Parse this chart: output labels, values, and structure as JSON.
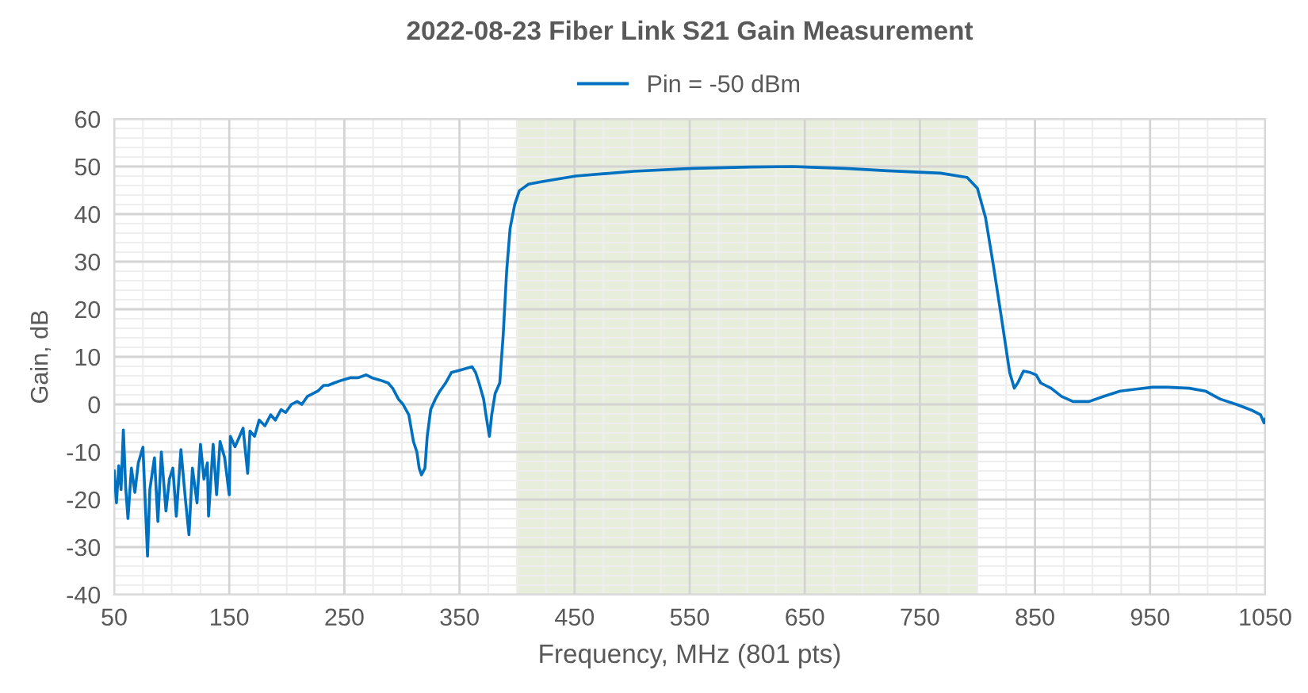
{
  "chart_data": {
    "type": "line",
    "title": "2022-08-23 Fiber Link S21 Gain Measurement",
    "xlabel": "Frequency, MHz (801 pts)",
    "ylabel": "Gain, dB",
    "xlim": [
      50,
      1050
    ],
    "xticks": [
      50,
      150,
      250,
      350,
      450,
      550,
      650,
      750,
      850,
      950,
      1050
    ],
    "ylim": [
      -40,
      60
    ],
    "yticks": [
      -40,
      -30,
      -20,
      -10,
      0,
      10,
      20,
      30,
      40,
      50,
      60
    ],
    "grid": true,
    "legend": "top",
    "bands": [
      {
        "axis": "x",
        "from": 400,
        "to": 800,
        "color": "#e3ebd6"
      }
    ],
    "series": [
      {
        "name": "Pin = -50 dBm",
        "color": "#0070c0",
        "x": [
          50,
          52,
          54,
          56,
          58,
          60,
          62,
          65,
          68,
          71,
          75,
          79,
          81,
          85,
          88,
          91,
          95,
          98,
          101,
          104,
          108,
          112,
          115,
          118,
          122,
          125,
          128,
          131,
          132,
          136,
          139,
          142,
          146,
          150,
          151,
          155,
          159,
          162,
          166,
          168,
          172,
          176,
          181,
          186,
          190,
          195,
          199,
          204,
          209,
          213,
          218,
          223,
          227,
          232,
          236,
          241,
          248,
          255,
          262,
          269,
          274,
          281,
          288,
          292,
          297,
          301,
          306,
          310,
          313,
          315,
          317,
          320,
          322,
          325,
          329,
          333,
          338,
          343,
          352,
          361,
          364,
          367,
          371,
          373,
          376,
          378,
          381,
          385,
          388,
          391,
          394,
          398,
          402,
          410,
          421,
          451,
          501.5,
          552,
          602.5,
          639,
          685,
          722,
          768,
          791,
          800,
          807,
          814,
          821,
          828,
          832,
          835,
          840,
          846,
          851,
          855,
          864,
          873,
          883,
          897,
          910,
          924,
          938,
          952,
          965,
          984,
          998,
          1011,
          1025,
          1039,
          1046,
          1049,
          1050
        ],
        "values": [
          -14,
          -20.7,
          -12.9,
          -17.9,
          -5.4,
          -17.4,
          -24,
          -13.4,
          -18.5,
          -12.3,
          -9,
          -31.9,
          -17.9,
          -11.2,
          -24.6,
          -10,
          -22.4,
          -15.7,
          -13.4,
          -23.5,
          -9.5,
          -20.2,
          -27.4,
          -13.4,
          -20.7,
          -8.4,
          -15.7,
          -12.3,
          -23.5,
          -8.4,
          -19,
          -7.8,
          -11.2,
          -19,
          -6.7,
          -8.9,
          -6.7,
          -5,
          -14.5,
          -5.6,
          -6.7,
          -3.3,
          -4.5,
          -2.2,
          -3.3,
          -1.1,
          -1.7,
          0,
          0.6,
          0,
          1.7,
          2.3,
          2.8,
          4,
          4,
          4.5,
          5.1,
          5.6,
          5.6,
          6.2,
          5.6,
          5.1,
          4.5,
          3.4,
          1.1,
          0,
          -2.2,
          -7.8,
          -10,
          -13.4,
          -14.8,
          -13.4,
          -6.7,
          -1.1,
          1.1,
          2.8,
          4.5,
          6.7,
          7.3,
          7.9,
          6.7,
          4.5,
          1.1,
          -2.2,
          -6.7,
          -2.2,
          2.3,
          4.5,
          14.6,
          28,
          37,
          42,
          44.9,
          46.3,
          46.8,
          48,
          49,
          49.6,
          49.9,
          50,
          49.6,
          49.1,
          48.6,
          47.7,
          45.4,
          39.3,
          29,
          18,
          6.7,
          3.4,
          4.5,
          7,
          6.7,
          6.2,
          4.5,
          3.4,
          1.7,
          0.6,
          0.6,
          1.7,
          2.8,
          3.2,
          3.6,
          3.6,
          3.4,
          2.8,
          1.1,
          0,
          -1.3,
          -2.2,
          -3.9,
          -3.1
        ]
      }
    ]
  }
}
